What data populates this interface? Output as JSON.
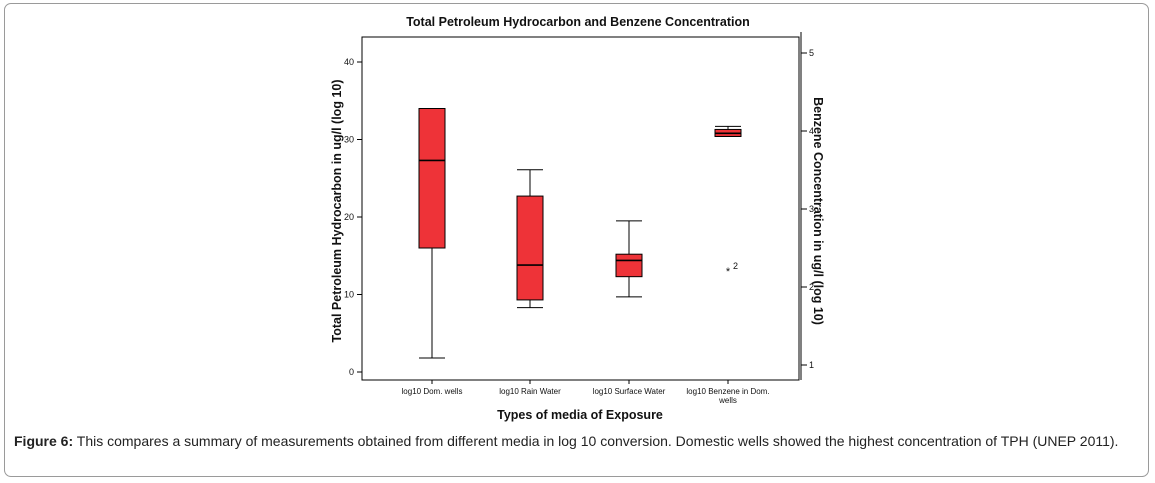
{
  "figure": {
    "label": "Figure 6:",
    "caption": " This compares a summary of measurements obtained from different media in log 10 conversion. Domestic wells showed the highest concentration of TPH (UNEP 2011)."
  },
  "chart_data": {
    "type": "box",
    "title": "Total Petroleum Hydrocarbon and Benzene Concentration",
    "xlabel": "Types of media of Exposure",
    "ylabel": "Total Petroleum Hydrocarbon in ug/l (log 10)",
    "y2label": "Benzene Concentration in ug/l (log 10)",
    "ylim": [
      -1,
      42
    ],
    "yticks": [
      0,
      10,
      20,
      30,
      40
    ],
    "y2lim": [
      0.9,
      5.1
    ],
    "y2ticks": [
      1,
      2,
      3,
      4,
      5
    ],
    "categories": [
      "log10 Dom. wells",
      "log10 Rain Water",
      "log10 Surface Water",
      "log10 Benzene in Dom. wells"
    ],
    "box_color": "#ee3338",
    "boxes": [
      {
        "category": "log10 Dom. wells",
        "axis": "left",
        "min": 1.8,
        "q1": 16,
        "median": 27.3,
        "q3": 34,
        "max": 34
      },
      {
        "category": "log10 Rain Water",
        "axis": "left",
        "min": 8.3,
        "q1": 9.3,
        "median": 13.8,
        "q3": 22.7,
        "max": 26.1
      },
      {
        "category": "log10 Surface Water",
        "axis": "left",
        "min": 9.7,
        "q1": 12.3,
        "median": 14.4,
        "q3": 15.2,
        "max": 19.5
      },
      {
        "category": "log10 Benzene in Dom. wells",
        "axis": "right",
        "min": 3.93,
        "q1": 3.93,
        "median": 3.97,
        "q3": 4.02,
        "max": 4.06
      }
    ],
    "outliers": [
      {
        "category": "log10 Benzene in Dom. wells",
        "axis": "right",
        "value": 2.22,
        "marker": "*",
        "label": "2"
      }
    ]
  }
}
